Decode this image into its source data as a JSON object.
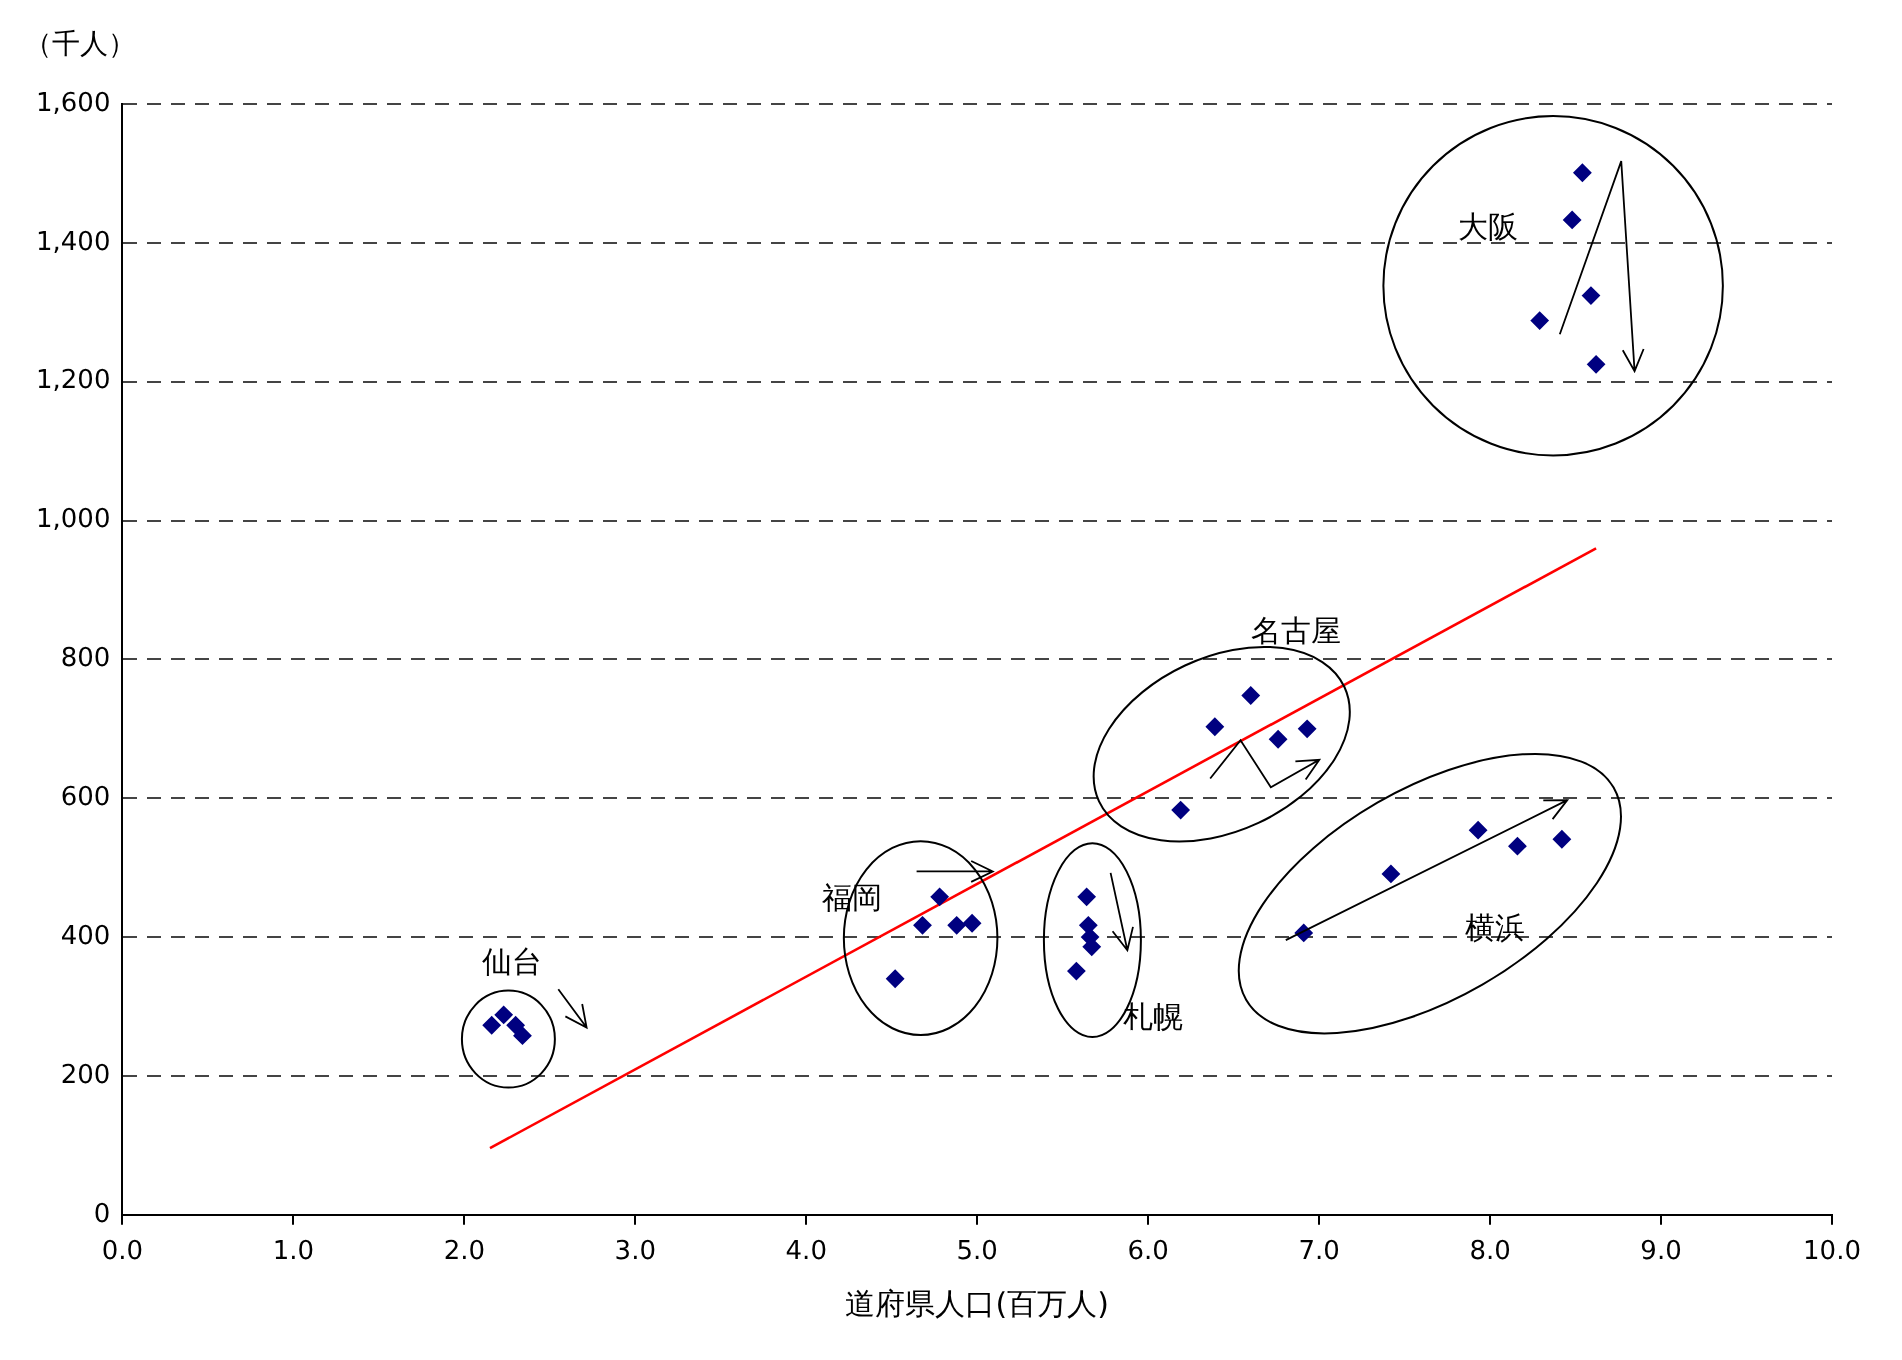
{
  "chart_data": {
    "type": "scatter",
    "xlabel": "道府県人口(百万人)",
    "ylabel": "（千人）",
    "xlim": [
      0,
      10
    ],
    "xticks": [
      {
        "value": 0,
        "label": "0.0"
      },
      {
        "value": 1,
        "label": "1.0"
      },
      {
        "value": 2,
        "label": "2.0"
      },
      {
        "value": 3,
        "label": "3.0"
      },
      {
        "value": 4,
        "label": "4.0"
      },
      {
        "value": 5,
        "label": "5.0"
      },
      {
        "value": 6,
        "label": "6.0"
      },
      {
        "value": 7,
        "label": "7.0"
      },
      {
        "value": 8,
        "label": "8.0"
      },
      {
        "value": 9,
        "label": "9.0"
      },
      {
        "value": 10,
        "label": "10.0"
      }
    ],
    "ylim": [
      0,
      1600
    ],
    "yticks": [
      0,
      200,
      400,
      600,
      800,
      {
        "value": 1000,
        "label": "1,000"
      },
      {
        "value": 1200,
        "label": "1,200"
      },
      {
        "value": 1400,
        "label": "1,400"
      },
      {
        "value": 1600,
        "label": "1,600"
      }
    ],
    "grid": "y",
    "series": [
      {
        "name": "仙台",
        "color": "#000080",
        "marker": "diamond",
        "x": [
          2.16,
          2.23,
          2.3,
          2.34
        ],
        "values": [
          273,
          288,
          273,
          258
        ]
      },
      {
        "name": "福岡",
        "color": "#000080",
        "marker": "diamond",
        "x": [
          4.52,
          4.68,
          4.78,
          4.88,
          4.97
        ],
        "values": [
          340,
          417,
          458,
          417,
          420
        ]
      },
      {
        "name": "札幌",
        "color": "#000080",
        "marker": "diamond",
        "x": [
          5.58,
          5.64,
          5.65,
          5.66,
          5.67
        ],
        "values": [
          351,
          458,
          417,
          400,
          386
        ]
      },
      {
        "name": "名古屋",
        "color": "#000080",
        "marker": "diamond",
        "x": [
          6.19,
          6.39,
          6.6,
          6.76,
          6.93
        ],
        "values": [
          583,
          703,
          748,
          685,
          700
        ]
      },
      {
        "name": "横浜",
        "color": "#000080",
        "marker": "diamond",
        "x": [
          6.91,
          7.42,
          7.93,
          8.16,
          8.42
        ],
        "values": [
          406,
          491,
          554,
          531,
          541
        ]
      },
      {
        "name": "大阪",
        "color": "#000080",
        "marker": "diamond",
        "x": [
          8.29,
          8.48,
          8.54,
          8.59,
          8.62
        ],
        "values": [
          1288,
          1433,
          1501,
          1324,
          1225
        ]
      },
      {
        "type": "line",
        "color": "#ff0000",
        "x": [
          2.15,
          8.62
        ],
        "values": [
          96,
          960
        ]
      }
    ]
  }
}
